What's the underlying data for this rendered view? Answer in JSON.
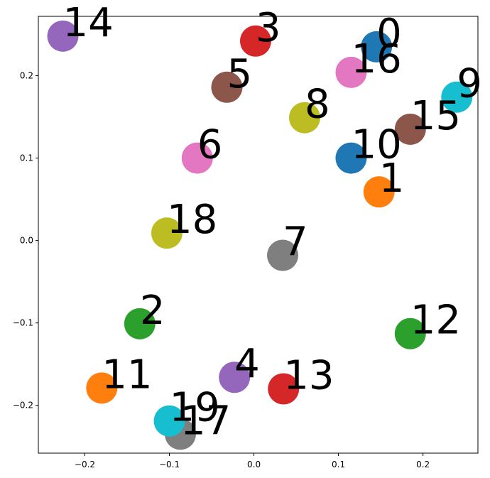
{
  "chart_data": {
    "type": "scatter",
    "title": "",
    "xlabel": "",
    "ylabel": "",
    "xlim": [
      -0.255,
      0.265
    ],
    "ylim": [
      -0.258,
      0.272
    ],
    "grid": false,
    "x_ticks": [
      -0.2,
      -0.1,
      0.0,
      0.1,
      0.2
    ],
    "x_tick_labels": [
      "−0.2",
      "−0.1",
      "0.0",
      "0.1",
      "0.2"
    ],
    "y_ticks": [
      -0.2,
      -0.1,
      0.0,
      0.1,
      0.2
    ],
    "y_tick_labels": [
      "−0.2",
      "−0.1",
      "0.0",
      "0.1",
      "0.2"
    ],
    "points": [
      {
        "label": "0",
        "x": 0.145,
        "y": 0.235,
        "color": "#1f77b4"
      },
      {
        "label": "1",
        "x": 0.148,
        "y": 0.059,
        "color": "#ff7f0e"
      },
      {
        "label": "2",
        "x": -0.135,
        "y": -0.101,
        "color": "#2ca02c"
      },
      {
        "label": "3",
        "x": 0.002,
        "y": 0.242,
        "color": "#d62728"
      },
      {
        "label": "4",
        "x": -0.023,
        "y": -0.166,
        "color": "#9467bd"
      },
      {
        "label": "5",
        "x": -0.032,
        "y": 0.186,
        "color": "#8c564b"
      },
      {
        "label": "6",
        "x": -0.067,
        "y": 0.1,
        "color": "#e377c2"
      },
      {
        "label": "7",
        "x": 0.034,
        "y": -0.018,
        "color": "#7f7f7f"
      },
      {
        "label": "8",
        "x": 0.06,
        "y": 0.149,
        "color": "#bcbd22"
      },
      {
        "label": "9",
        "x": 0.24,
        "y": 0.174,
        "color": "#17becf"
      },
      {
        "label": "10",
        "x": 0.115,
        "y": 0.1,
        "color": "#1f77b4"
      },
      {
        "label": "11",
        "x": -0.18,
        "y": -0.179,
        "color": "#ff7f0e"
      },
      {
        "label": "12",
        "x": 0.185,
        "y": -0.113,
        "color": "#2ca02c"
      },
      {
        "label": "13",
        "x": 0.035,
        "y": -0.18,
        "color": "#d62728"
      },
      {
        "label": "14",
        "x": -0.226,
        "y": 0.248,
        "color": "#9467bd"
      },
      {
        "label": "15",
        "x": 0.185,
        "y": 0.135,
        "color": "#8c564b"
      },
      {
        "label": "16",
        "x": 0.115,
        "y": 0.204,
        "color": "#e377c2"
      },
      {
        "label": "17",
        "x": -0.087,
        "y": -0.235,
        "color": "#7f7f7f"
      },
      {
        "label": "18",
        "x": -0.103,
        "y": 0.009,
        "color": "#bcbd22"
      },
      {
        "label": "19",
        "x": -0.1,
        "y": -0.219,
        "color": "#17becf"
      }
    ]
  }
}
